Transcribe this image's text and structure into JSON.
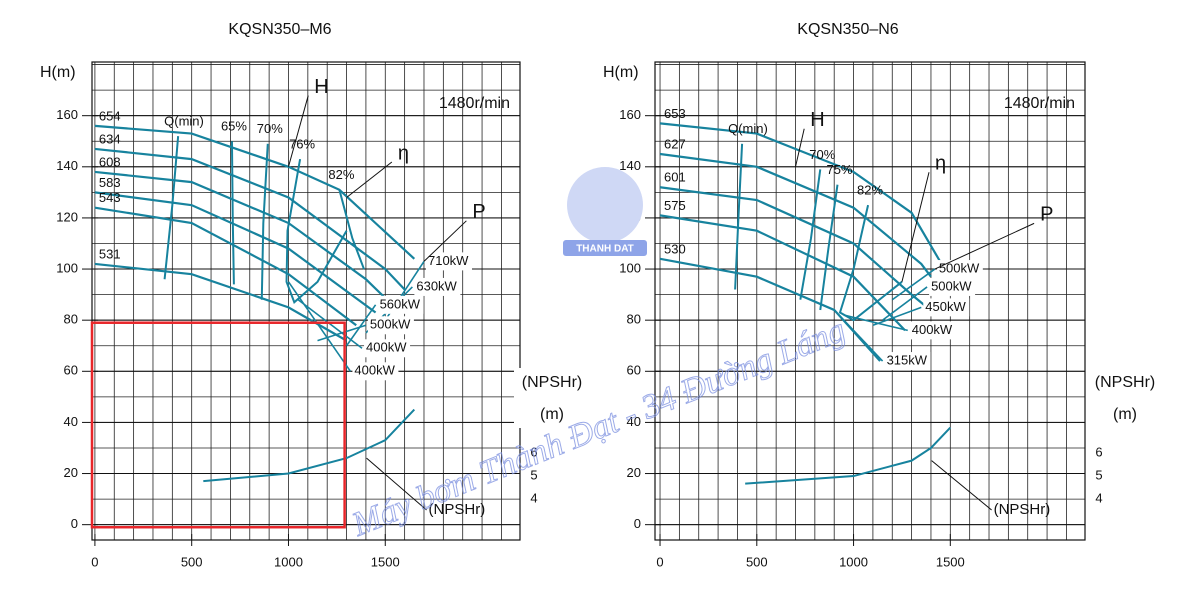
{
  "chart_data": [
    {
      "type": "line",
      "title": "KQSN350–M6",
      "ylabel": "H(m)",
      "speed": "1480r/min",
      "color": "#17839e",
      "xlim": [
        -15,
        2196
      ],
      "ylim": [
        -6,
        181
      ],
      "xticks": [
        0,
        500,
        1000,
        1500
      ],
      "yticks": [
        0,
        20,
        40,
        60,
        80,
        100,
        120,
        140,
        160
      ],
      "y2label": [
        "(NPSHr)",
        "(m)"
      ],
      "y2lim": [
        2.22,
        23
      ],
      "y2ticks": [
        6,
        5,
        4
      ],
      "grid": true,
      "head_curves": [
        {
          "name": "654",
          "x": [
            0,
            500,
            1000,
            1263,
            1650
          ],
          "values": [
            156,
            153,
            140,
            131,
            104
          ]
        },
        {
          "name": "634",
          "x": [
            0,
            500,
            1000,
            1500,
            1600
          ],
          "values": [
            147,
            143,
            128,
            100,
            92
          ]
        },
        {
          "name": "608",
          "x": [
            0,
            500,
            1000,
            1400,
            1550
          ],
          "values": [
            138,
            134,
            118,
            96,
            85
          ]
        },
        {
          "name": "583",
          "x": [
            0,
            500,
            1000,
            1450
          ],
          "values": [
            130,
            125,
            108,
            83
          ]
        },
        {
          "name": "543",
          "x": [
            0,
            500,
            1000,
            1350
          ],
          "values": [
            124,
            118,
            98,
            78
          ]
        },
        {
          "name": "531",
          "x": [
            0,
            500,
            1000,
            1300
          ],
          "values": [
            102,
            98,
            85,
            72
          ]
        }
      ],
      "qmin_curve": {
        "name": "Q(min)",
        "x": [
          430,
          400,
          360
        ],
        "values": [
          152,
          125,
          96
        ]
      },
      "efficiency_curves": [
        {
          "name": "65%",
          "x": [
            708,
            712,
            718
          ],
          "values": [
            150,
            120,
            94
          ]
        },
        {
          "name": "70%",
          "x": [
            893,
            870,
            862
          ],
          "values": [
            149,
            118,
            88
          ]
        },
        {
          "name": "76%",
          "x": [
            1060,
            995,
            990,
            1030,
            1150,
            1300
          ],
          "values": [
            143,
            115,
            95,
            87,
            95,
            115
          ]
        },
        {
          "name": "82%",
          "x": [
            1263,
            1330,
            1390
          ],
          "values": [
            131,
            112,
            100
          ]
        }
      ],
      "power_curves": [
        {
          "name": "710kW",
          "x": [
            1500,
            1700
          ],
          "values": [
            80,
            103
          ]
        },
        {
          "name": "630kW",
          "x": [
            1400,
            1640
          ],
          "values": [
            75,
            93
          ]
        },
        {
          "name": "560kW",
          "x": [
            1300,
            1450
          ],
          "values": [
            70,
            86
          ]
        },
        {
          "name": "500kW",
          "x": [
            1150,
            1400
          ],
          "values": [
            72,
            78
          ]
        },
        {
          "name": "400kW",
          "x": [
            1050,
            1380
          ],
          "values": [
            88,
            69
          ]
        },
        {
          "name": "400kW",
          "x": [
            1000,
            1320
          ],
          "values": [
            95,
            60
          ]
        }
      ],
      "npsh_curve": {
        "name": "(NPSHr)",
        "axis": "y2",
        "x": [
          560,
          1000,
          1300,
          1500,
          1650
        ],
        "values": [
          4.78,
          5.11,
          5.78,
          6.56,
          7.89
        ]
      },
      "annotations": [
        "H",
        "η",
        "P"
      ],
      "highlight": {
        "x": [
          -15,
          1290
        ],
        "y": [
          -1,
          79
        ],
        "color": "#e8262a"
      }
    },
    {
      "type": "line",
      "title": "KQSN350–N6",
      "ylabel": "H(m)",
      "speed": "1480r/min",
      "color": "#17839e",
      "xlim": [
        -26,
        2196
      ],
      "ylim": [
        -6,
        181
      ],
      "xticks": [
        0,
        500,
        1000,
        1500
      ],
      "yticks": [
        0,
        20,
        40,
        60,
        80,
        100,
        120,
        140,
        160
      ],
      "y2label": [
        "(NPSHr)",
        "(m)"
      ],
      "y2lim": [
        2.22,
        23
      ],
      "y2ticks": [
        6,
        5,
        4
      ],
      "grid": true,
      "head_curves": [
        {
          "name": "653",
          "x": [
            0,
            500,
            1000,
            1300,
            1447
          ],
          "values": [
            157,
            153,
            138,
            122,
            103
          ]
        },
        {
          "name": "627",
          "x": [
            0,
            500,
            1000,
            1350,
            1400
          ],
          "values": [
            145,
            140,
            124,
            102,
            97
          ]
        },
        {
          "name": "601",
          "x": [
            0,
            500,
            1000,
            1300,
            1380
          ],
          "values": [
            132,
            127,
            110,
            90,
            85
          ]
        },
        {
          "name": "575",
          "x": [
            0,
            500,
            1000,
            1266
          ],
          "values": [
            121,
            115,
            97,
            76
          ]
        },
        {
          "name": "530",
          "x": [
            0,
            500,
            900,
            1137
          ],
          "values": [
            104,
            97,
            84,
            64
          ]
        }
      ],
      "qmin_curve": {
        "name": "Q(min)",
        "x": [
          424,
          405,
          388
        ],
        "values": [
          149,
          120,
          92
        ]
      },
      "efficiency_curves": [
        {
          "name": "70%",
          "x": [
            828,
            780,
            725
          ],
          "values": [
            139,
            112,
            88
          ]
        },
        {
          "name": "75%",
          "x": [
            917,
            870,
            828
          ],
          "values": [
            133,
            108,
            84
          ]
        },
        {
          "name": "82%",
          "x": [
            1075,
            1000,
            930,
            1000,
            1250
          ],
          "values": [
            125,
            100,
            83,
            80,
            95
          ]
        }
      ],
      "power_curves": [
        {
          "name": "500kW",
          "x": [
            1200,
            1420
          ],
          "values": [
            88,
            100
          ]
        },
        {
          "name": "500kW",
          "x": [
            1150,
            1380
          ],
          "values": [
            80,
            93
          ]
        },
        {
          "name": "450kW",
          "x": [
            1100,
            1350
          ],
          "values": [
            78,
            85
          ]
        },
        {
          "name": "400kW",
          "x": [
            950,
            1280
          ],
          "values": [
            82,
            76
          ]
        },
        {
          "name": "315kW",
          "x": [
            900,
            1150
          ],
          "values": [
            84,
            64
          ]
        }
      ],
      "npsh_curve": {
        "name": "(NPSHr)",
        "axis": "y2",
        "x": [
          440,
          1000,
          1300,
          1400,
          1500
        ],
        "values": [
          4.67,
          5.0,
          5.67,
          6.22,
          7.11
        ]
      },
      "annotations": [
        "H",
        "η",
        "P"
      ]
    }
  ],
  "watermark": {
    "text": "Máy bơm Thành Đạt - 34 Đường Láng",
    "logo": "THANH DAT"
  }
}
